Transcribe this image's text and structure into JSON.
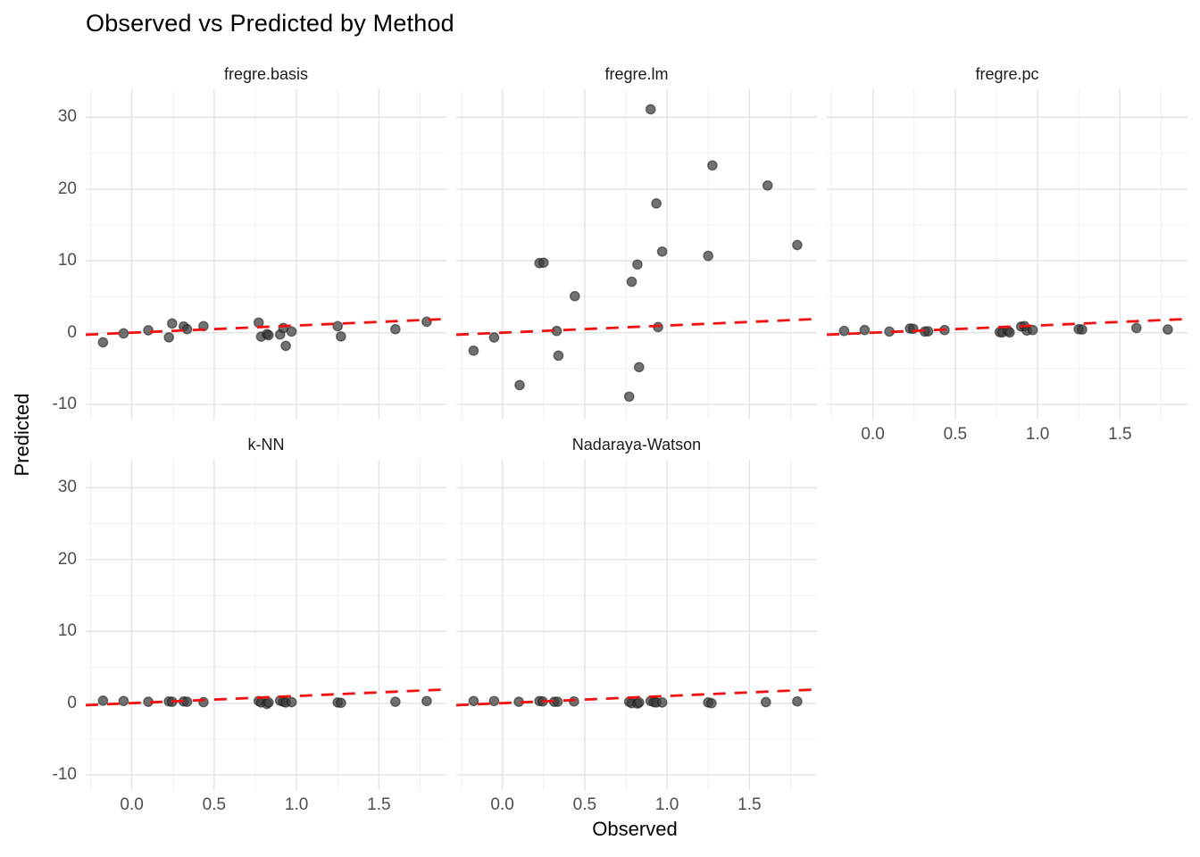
{
  "title": "Observed vs Predicted by Method",
  "axis": {
    "x_label": "Observed",
    "y_label": "Predicted",
    "x_ticks": [
      0.0,
      0.5,
      1.0,
      1.5
    ],
    "x_tick_labels": [
      "0.0",
      "0.5",
      "1.0",
      "1.5"
    ],
    "y_ticks": [
      30,
      20,
      10,
      0,
      -10
    ],
    "y_tick_labels": [
      "30",
      "20",
      "10",
      "0",
      "-10"
    ]
  },
  "colors": {
    "background": "#FFFFFF",
    "grid_major": "#E3E3E3",
    "grid_minor": "#EFEFEF",
    "point": "#3A3A3A",
    "point_stroke": "#141414",
    "reference_line": "#F01111",
    "tick_text": "#4D4D4D",
    "strip_text": "#1A1A1A",
    "title_text": "#000000"
  },
  "chart_data": {
    "type": "scatter",
    "title": "Observed vs Predicted by Method",
    "xlabel": "Observed",
    "ylabel": "Predicted",
    "facet_by": "Method",
    "xlim": [
      -0.28,
      1.91
    ],
    "ylim": [
      -12.1,
      33.9
    ],
    "x_major": [
      0,
      0.5,
      1,
      1.5
    ],
    "x_minor": [
      -0.25,
      0.25,
      0.75,
      1.25,
      1.75
    ],
    "y_major": [
      -10,
      0,
      10,
      20,
      30
    ],
    "y_minor": [
      -5,
      5,
      15,
      25
    ],
    "grid": true,
    "legend": false,
    "reference_line": {
      "kind": "identity y=x",
      "style": "dashed",
      "color": "#F01111",
      "x1": -0.28,
      "y1": -0.28,
      "x2": 1.91,
      "y2": 1.91
    },
    "point_opacity": 0.72,
    "facets": [
      {
        "label": "fregre.basis",
        "points": [
          [
            -0.175,
            -1.35
          ],
          [
            -0.05,
            -0.1
          ],
          [
            0.1,
            0.33
          ],
          [
            0.225,
            -0.65
          ],
          [
            0.245,
            1.28
          ],
          [
            0.315,
            0.87
          ],
          [
            0.335,
            0.5
          ],
          [
            0.435,
            0.91
          ],
          [
            0.77,
            1.4
          ],
          [
            0.785,
            -0.55
          ],
          [
            0.82,
            -0.2
          ],
          [
            0.83,
            -0.35
          ],
          [
            0.9,
            -0.25
          ],
          [
            0.92,
            0.66
          ],
          [
            0.935,
            -1.83
          ],
          [
            0.97,
            0.16
          ],
          [
            1.25,
            0.91
          ],
          [
            1.27,
            -0.53
          ],
          [
            1.6,
            0.5
          ],
          [
            1.79,
            1.53
          ]
        ]
      },
      {
        "label": "fregre.lm",
        "points": [
          [
            -0.175,
            -2.5
          ],
          [
            -0.05,
            -0.66
          ],
          [
            0.105,
            -7.3
          ],
          [
            0.225,
            9.7
          ],
          [
            0.25,
            9.75
          ],
          [
            0.33,
            0.25
          ],
          [
            0.34,
            -3.2
          ],
          [
            0.44,
            5.1
          ],
          [
            0.77,
            -8.9
          ],
          [
            0.785,
            7.1
          ],
          [
            0.82,
            9.5
          ],
          [
            0.83,
            -4.8
          ],
          [
            0.9,
            31.1
          ],
          [
            0.935,
            18.0
          ],
          [
            0.945,
            0.78
          ],
          [
            0.97,
            11.3
          ],
          [
            1.25,
            10.7
          ],
          [
            1.275,
            23.3
          ],
          [
            1.61,
            20.5
          ],
          [
            1.79,
            12.2
          ]
        ]
      },
      {
        "label": "fregre.pc",
        "points": [
          [
            -0.175,
            0.25
          ],
          [
            -0.05,
            0.37
          ],
          [
            0.1,
            0.16
          ],
          [
            0.225,
            0.58
          ],
          [
            0.245,
            0.55
          ],
          [
            0.315,
            0.16
          ],
          [
            0.335,
            0.2
          ],
          [
            0.435,
            0.37
          ],
          [
            0.77,
            0.08
          ],
          [
            0.785,
            0.04
          ],
          [
            0.82,
            0.25
          ],
          [
            0.83,
            0.04
          ],
          [
            0.9,
            0.85
          ],
          [
            0.92,
            0.9
          ],
          [
            0.935,
            0.3
          ],
          [
            0.97,
            0.37
          ],
          [
            1.25,
            0.5
          ],
          [
            1.27,
            0.45
          ],
          [
            1.6,
            0.66
          ],
          [
            1.79,
            0.45
          ]
        ]
      },
      {
        "label": "k-NN",
        "points": [
          [
            -0.175,
            0.35
          ],
          [
            -0.05,
            0.3
          ],
          [
            0.1,
            0.2
          ],
          [
            0.225,
            0.25
          ],
          [
            0.245,
            0.2
          ],
          [
            0.315,
            0.25
          ],
          [
            0.335,
            0.2
          ],
          [
            0.435,
            0.15
          ],
          [
            0.77,
            0.3
          ],
          [
            0.785,
            0.1
          ],
          [
            0.82,
            -0.1
          ],
          [
            0.83,
            0.1
          ],
          [
            0.9,
            0.35
          ],
          [
            0.92,
            0.2
          ],
          [
            0.935,
            0.1
          ],
          [
            0.97,
            0.15
          ],
          [
            1.25,
            0.1
          ],
          [
            1.27,
            0.05
          ],
          [
            1.6,
            0.2
          ],
          [
            1.79,
            0.3
          ]
        ]
      },
      {
        "label": "Nadaraya-Watson",
        "points": [
          [
            -0.175,
            0.3
          ],
          [
            -0.05,
            0.3
          ],
          [
            0.1,
            0.2
          ],
          [
            0.225,
            0.3
          ],
          [
            0.245,
            0.25
          ],
          [
            0.315,
            0.2
          ],
          [
            0.335,
            0.2
          ],
          [
            0.435,
            0.25
          ],
          [
            0.77,
            0.2
          ],
          [
            0.785,
            0.0
          ],
          [
            0.82,
            -0.05
          ],
          [
            0.83,
            0.1
          ],
          [
            0.9,
            0.3
          ],
          [
            0.92,
            0.15
          ],
          [
            0.935,
            0.1
          ],
          [
            0.97,
            0.1
          ],
          [
            1.25,
            0.1
          ],
          [
            1.27,
            0.0
          ],
          [
            1.6,
            0.15
          ],
          [
            1.79,
            0.25
          ]
        ]
      }
    ]
  }
}
